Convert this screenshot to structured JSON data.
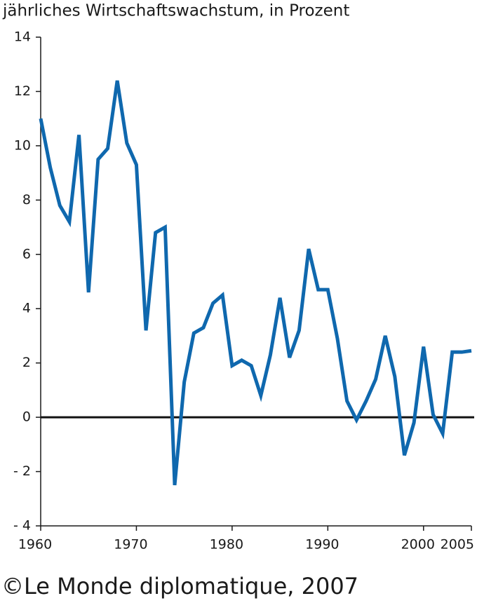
{
  "chart_data": {
    "type": "line",
    "title": "jährliches Wirtschaftswachstum, in Prozent",
    "source": "©Le Monde diplomatique, 2007",
    "x": [
      1960,
      1961,
      1962,
      1963,
      1964,
      1965,
      1966,
      1967,
      1968,
      1969,
      1970,
      1971,
      1972,
      1973,
      1974,
      1975,
      1976,
      1977,
      1978,
      1979,
      1980,
      1981,
      1982,
      1983,
      1984,
      1985,
      1986,
      1987,
      1988,
      1989,
      1990,
      1991,
      1992,
      1993,
      1994,
      1995,
      1996,
      1997,
      1998,
      1999,
      2000,
      2001,
      2002,
      2003,
      2004,
      2005
    ],
    "series": [
      {
        "color": "#0f68ae",
        "values": [
          11.0,
          9.2,
          7.8,
          7.2,
          10.4,
          4.6,
          9.5,
          9.9,
          12.4,
          10.1,
          9.3,
          3.2,
          6.8,
          7.0,
          -2.5,
          1.3,
          3.1,
          3.3,
          4.2,
          4.5,
          1.9,
          2.1,
          1.9,
          0.8,
          2.3,
          4.4,
          2.2,
          3.2,
          6.2,
          4.7,
          4.7,
          2.9,
          0.6,
          -0.1,
          0.6,
          1.4,
          3.0,
          1.5,
          -1.4,
          -0.2,
          2.6,
          0.1,
          -0.6,
          2.4,
          2.4,
          2.45
        ]
      }
    ],
    "xlim": [
      1960,
      2005
    ],
    "xticks": [
      1960,
      1970,
      1980,
      1990,
      2000,
      2005
    ],
    "ylim": [
      -4,
      14
    ],
    "yticks": [
      {
        "value": -4,
        "label": "- 4"
      },
      {
        "value": -2,
        "label": "- 2"
      },
      0,
      2,
      4,
      6,
      8,
      10,
      12,
      14
    ],
    "zero_line": true
  }
}
